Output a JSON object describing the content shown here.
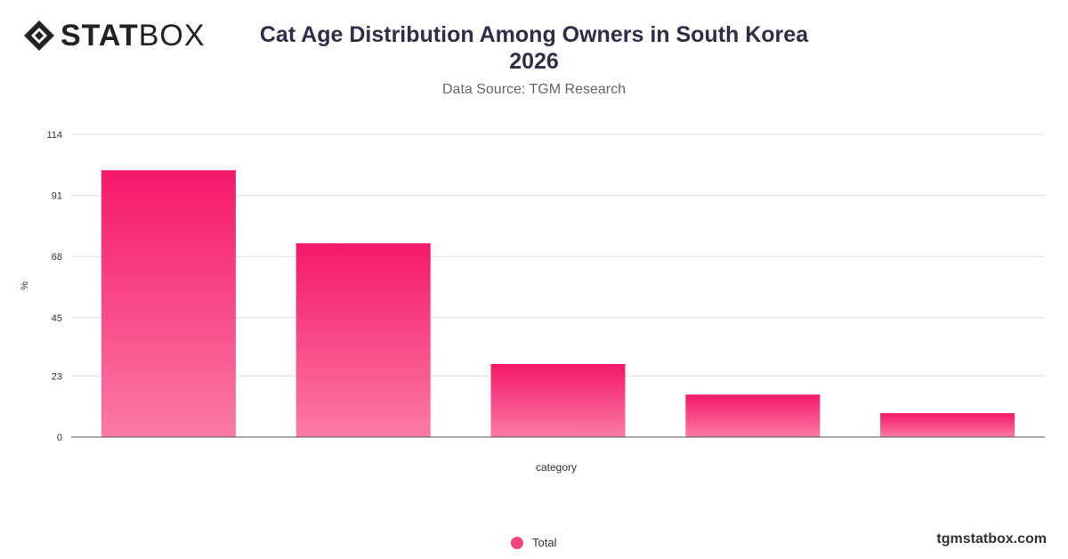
{
  "brand": {
    "logo_bold": "STAT",
    "logo_light": "BOX",
    "watermark": "tgmstatbox.com"
  },
  "colors": {
    "bar_top": "#f5186a",
    "bar_bottom": "#fb7aa5",
    "grid": "#dddddd",
    "axis": "#555555"
  },
  "chart_data": {
    "type": "bar",
    "title_line1": "Cat Age Distribution Among Owners in South Korea",
    "title_line2": "2026",
    "subtitle": "Data Source: TGM Research",
    "xlabel": "category",
    "ylabel": "%",
    "yticks": [
      "0",
      "23",
      "45",
      "68",
      "91",
      "114"
    ],
    "ylim": [
      0,
      114
    ],
    "grid": true,
    "legend_position": "bottom",
    "series": [
      {
        "name": "Total",
        "values": [
          100.5,
          73,
          27.5,
          16,
          9
        ]
      }
    ]
  }
}
